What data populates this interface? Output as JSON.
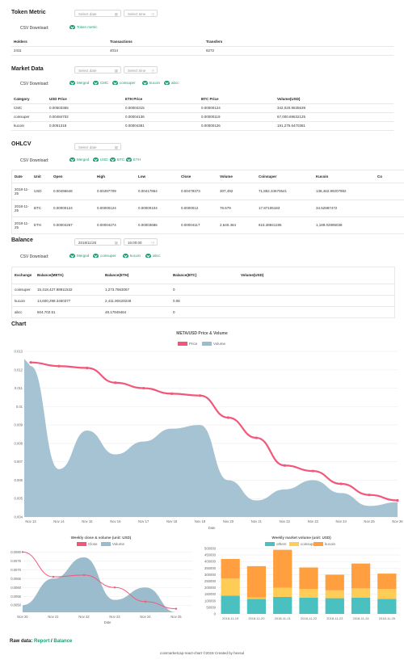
{
  "token_metric": {
    "title": "Token Metric",
    "date_placeholder": "Select date",
    "time_placeholder": "Select time",
    "csv_label": "CSV Download:",
    "download": "Token metric",
    "headers": [
      "Holders",
      "Transactions",
      "Transfers"
    ],
    "row": [
      "2411",
      "4014",
      "6272"
    ]
  },
  "market_data": {
    "title": "Market Data",
    "date_placeholder": "Select date",
    "time_placeholder": "Select time",
    "csv_label": "CSV Download:",
    "downloads": [
      "Merged",
      "CMC",
      "coinsuper",
      "kucoin",
      "abcc"
    ],
    "headers": [
      "Category",
      "USD Price",
      "ETH Price",
      "BTC Price",
      "Volume(USD)"
    ],
    "rows": [
      [
        "CMC",
        "0.00503365",
        "0.00004315",
        "0.00000124",
        "342,020.9535539"
      ],
      [
        "coinsuper",
        "0.00484702",
        "0.00004136",
        "0.00000119",
        "67,000.69632125"
      ],
      [
        "kucoin",
        "0.0051318",
        "0.00004381",
        "0.00000126",
        "191,275.6470381"
      ]
    ]
  },
  "ohlcv": {
    "title": "OHLCV",
    "date_placeholder": "Select date",
    "csv_label": "CSV Download:",
    "downloads": [
      "Merged",
      "USD",
      "BTC",
      "ETH"
    ],
    "headers": [
      "Date",
      "Unit",
      "Open",
      "High",
      "Low",
      "Close",
      "Volume",
      "Coinsuper",
      "Kucoin",
      "Co"
    ],
    "rows": [
      [
        "2018-11-25",
        "USD",
        "0.00496646",
        "0.00497709",
        "0.00417864",
        "0.00479373",
        "307,492",
        "71,862.34670641",
        "138,462.89207982",
        ""
      ],
      [
        "2018-11-25",
        "BTC",
        "0.00000124",
        "0.00000124",
        "0.00000104",
        "0.0000012",
        "76.679",
        "17.87105183",
        "34.52987472",
        ""
      ],
      [
        "2018-11-25",
        "ETH",
        "0.00004267",
        "0.00004274",
        "0.00003686",
        "0.00004117",
        "2,640.464",
        "615.38841195",
        "1,189.02895038",
        ""
      ]
    ]
  },
  "balance": {
    "title": "Balance",
    "date_value": "2018/11/26",
    "time_value": "16:00:00",
    "csv_label": "CSV Download:",
    "downloads": [
      "Merged",
      "coinsuper",
      "kucoin",
      "abcc"
    ],
    "headers": [
      "Exchange",
      "Balance(META)",
      "Balance(ETH)",
      "Balance(BTC)",
      "Volume(USD)"
    ],
    "rows": [
      [
        "coinsuper",
        "15,418,427.98911532",
        "1,273.7863067",
        "0",
        ""
      ],
      [
        "kucoin",
        "14,600,298.3450377",
        "2,411.90428248",
        "0.06",
        ""
      ],
      [
        "abcc",
        "604,702.51",
        "48.17849464",
        "0",
        ""
      ]
    ]
  },
  "chart_section": {
    "title": "Chart"
  },
  "chart_data": [
    {
      "type": "line",
      "title": "META/USD Price & Volume",
      "xlabel": "Date",
      "legend": [
        "Price",
        "Volume"
      ],
      "x": [
        "Nov 13",
        "Nov 14",
        "Nov 15",
        "Nov 16",
        "Nov 17",
        "Nov 18",
        "Nov 19",
        "Nov 20",
        "Nov 21",
        "Nov 22",
        "Nov 23",
        "Nov 24",
        "Nov 25",
        "Nov 26"
      ],
      "yticks": [
        "0.013",
        "0.012",
        "0.011",
        "0.01",
        "0.009",
        "0.008",
        "0.007",
        "0.006",
        "0.005",
        "0.004"
      ],
      "ylim": [
        0.004,
        0.013
      ],
      "series": [
        {
          "name": "Price",
          "color": "#f2577a",
          "values": [
            0.0124,
            0.0122,
            0.0121,
            0.0113,
            0.011,
            0.0107,
            0.0106,
            0.0094,
            0.0083,
            0.0068,
            0.0065,
            0.0058,
            0.0052,
            0.0049
          ]
        },
        {
          "name": "Volume",
          "color": "#9bbccd",
          "values": [
            0.0122,
            0.0066,
            0.0087,
            0.0074,
            0.0081,
            0.0088,
            0.009,
            0.006,
            0.0049,
            0.0055,
            0.006,
            0.0053,
            0.0046,
            0.0048
          ]
        }
      ]
    },
    {
      "type": "area",
      "title": "Weekly close & volume (unit: USD)",
      "xlabel": "Date",
      "legend": [
        "Close",
        "Volume"
      ],
      "x": [
        "Nov 20",
        "Nov 21",
        "Nov 22",
        "Nov 23",
        "Nov 24",
        "Nov 25"
      ],
      "yticks": [
        "0.0080",
        "0.0075",
        "0.0070",
        "0.0065",
        "0.0060",
        "0.0055",
        "0.0050"
      ],
      "ylim": [
        0.0046,
        0.0082
      ],
      "series": [
        {
          "name": "Close",
          "color": "#f2577a",
          "values": [
            0.008,
            0.0066,
            0.0067,
            0.006,
            0.0052,
            0.0048
          ]
        },
        {
          "name": "Volume",
          "color": "#9bbccd",
          "values": [
            0.005,
            0.0065,
            0.0077,
            0.0053,
            0.006,
            0.0046
          ]
        }
      ]
    },
    {
      "type": "bar",
      "title": "Weekly market volume (unit: USD)",
      "legend": [
        "others",
        "coinsuper",
        "kucoin"
      ],
      "categories": [
        "2018-11-19",
        "2018-11-20",
        "2018-11-21",
        "2018-11-22",
        "2018-11-23",
        "2018-11-24",
        "2018-11-25"
      ],
      "yticks": [
        "500000",
        "450000",
        "400000",
        "350000",
        "300000",
        "250000",
        "200000",
        "150000",
        "100000",
        "50000",
        "0"
      ],
      "ylim": [
        0,
        500000
      ],
      "series": [
        {
          "name": "others",
          "color": "#4bc0c0",
          "values": [
            140000,
            115000,
            130000,
            125000,
            120000,
            125000,
            115000
          ]
        },
        {
          "name": "coinsuper",
          "color": "#ffcd56",
          "values": [
            130000,
            10000,
            70000,
            65000,
            60000,
            70000,
            75000
          ]
        },
        {
          "name": "kucoin",
          "color": "#ff9f40",
          "values": [
            150000,
            240000,
            290000,
            165000,
            120000,
            190000,
            118000
          ]
        }
      ]
    }
  ],
  "footer": {
    "raw_label": "Raw data:",
    "report": "Report",
    "sep": "/",
    "balance": "Balance",
    "credit": "coinmarketcap-react-chart ©2018 Created by hexsul"
  }
}
